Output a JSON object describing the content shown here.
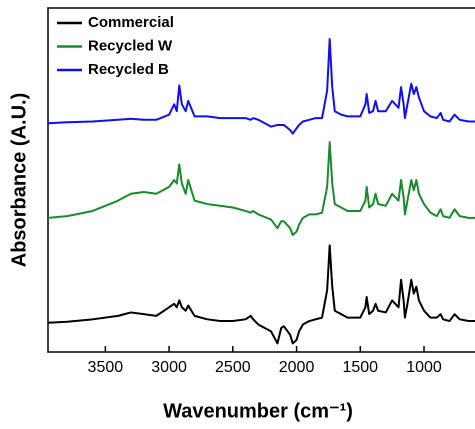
{
  "chart_data": {
    "type": "line",
    "xlabel": "Wavenumber (cm⁻¹)",
    "ylabel": "Absorbance (A.U.)",
    "x": [
      3950,
      3800,
      3600,
      3400,
      3300,
      3200,
      3100,
      3000,
      2960,
      2940,
      2920,
      2900,
      2870,
      2850,
      2800,
      2700,
      2600,
      2500,
      2400,
      2360,
      2340,
      2300,
      2200,
      2150,
      2120,
      2100,
      2050,
      2030,
      2000,
      1980,
      1950,
      1900,
      1850,
      1800,
      1760,
      1740,
      1720,
      1700,
      1650,
      1600,
      1500,
      1460,
      1450,
      1430,
      1400,
      1380,
      1360,
      1300,
      1250,
      1200,
      1180,
      1160,
      1150,
      1130,
      1100,
      1080,
      1060,
      1040,
      1000,
      950,
      900,
      870,
      850,
      800,
      760,
      720,
      650,
      600
    ],
    "series": [
      {
        "name": "Commercial",
        "color": "#000000",
        "values": [
          0.85,
          0.88,
          0.95,
          1.05,
          1.15,
          1.1,
          1.05,
          1.3,
          1.4,
          1.3,
          1.5,
          1.3,
          1.2,
          1.35,
          1.05,
          0.95,
          0.9,
          0.9,
          0.95,
          1.05,
          0.95,
          0.8,
          0.6,
          0.25,
          0.7,
          0.75,
          0.5,
          0.25,
          0.35,
          0.6,
          0.8,
          0.9,
          0.95,
          1.0,
          1.8,
          3.1,
          1.9,
          1.2,
          1.1,
          1.0,
          1.0,
          1.3,
          1.6,
          1.1,
          1.2,
          1.4,
          1.2,
          1.15,
          1.5,
          1.3,
          2.1,
          1.5,
          1.0,
          1.4,
          2.1,
          1.7,
          1.9,
          1.5,
          1.2,
          1.0,
          1.0,
          1.1,
          0.95,
          0.9,
          1.1,
          0.95,
          0.9,
          0.9
        ]
      },
      {
        "name": "Recycled W",
        "color": "#1a8a2e",
        "values": [
          3.9,
          3.95,
          4.1,
          4.4,
          4.6,
          4.65,
          4.6,
          4.8,
          5.0,
          4.9,
          5.45,
          4.9,
          4.6,
          5.0,
          4.4,
          4.3,
          4.25,
          4.2,
          4.1,
          4.05,
          4.1,
          4.0,
          3.85,
          3.6,
          3.8,
          3.8,
          3.6,
          3.4,
          3.5,
          3.7,
          3.9,
          4.0,
          4.0,
          4.05,
          4.8,
          6.1,
          4.9,
          4.3,
          4.2,
          4.1,
          4.1,
          4.4,
          4.8,
          4.2,
          4.3,
          4.6,
          4.3,
          4.25,
          4.6,
          4.4,
          5.0,
          4.5,
          4.0,
          4.4,
          5.0,
          4.7,
          5.0,
          4.6,
          4.3,
          4.05,
          3.95,
          4.15,
          3.95,
          3.9,
          4.15,
          3.95,
          3.9,
          3.9
        ]
      },
      {
        "name": "Recycled B",
        "color": "#1010ee",
        "values": [
          6.65,
          6.68,
          6.7,
          6.75,
          6.78,
          6.75,
          6.75,
          6.9,
          7.2,
          7.0,
          7.75,
          7.2,
          7.0,
          7.3,
          6.85,
          6.85,
          6.8,
          6.8,
          6.8,
          6.75,
          6.8,
          6.75,
          6.55,
          6.6,
          6.6,
          6.6,
          6.45,
          6.35,
          6.5,
          6.6,
          6.7,
          6.75,
          6.8,
          6.8,
          7.6,
          9.1,
          7.7,
          7.0,
          6.9,
          6.85,
          6.85,
          7.2,
          7.5,
          6.95,
          7.0,
          7.3,
          7.0,
          7.0,
          7.3,
          7.1,
          7.7,
          7.2,
          6.8,
          7.2,
          7.8,
          7.5,
          7.7,
          7.4,
          7.0,
          6.85,
          6.8,
          6.95,
          6.75,
          6.7,
          6.9,
          6.75,
          6.7,
          6.7
        ]
      }
    ],
    "xlim": [
      3950,
      600
    ],
    "ylim": [
      0,
      10
    ],
    "xticks": [
      3500,
      3000,
      2500,
      2000,
      1500,
      1000
    ],
    "legend": "upper-left"
  }
}
